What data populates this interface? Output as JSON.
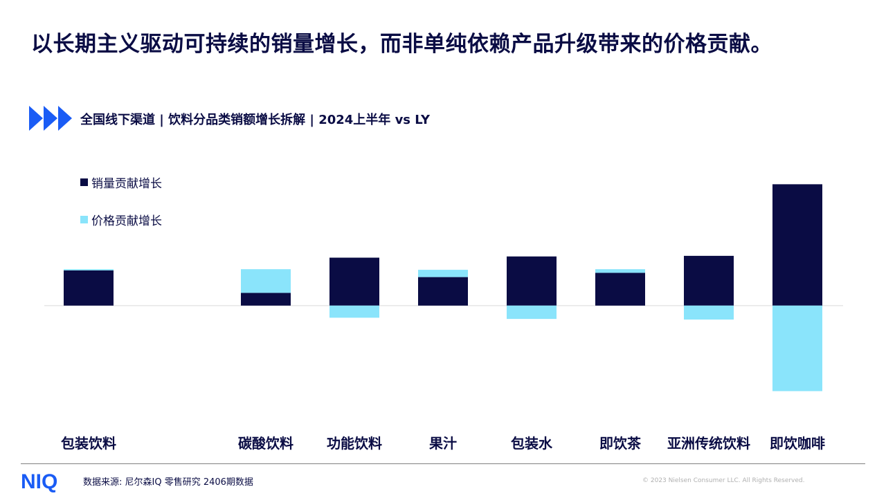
{
  "headline": "以长期主义驱动可持续的销量增长，而非单纯依赖产品升级带来的价格贡献。",
  "subtitle": "全国线下渠道 | 饮料分品类销额增长拆解 | 2024上半年 vs LY",
  "source": "数据来源: 尼尔森IQ 零售研究 2406期数据",
  "copyright": "© 2023 Nielsen Consumer LLC. All Rights Reserved.",
  "logo_text": "NIQ",
  "colors": {
    "volume": "#0a0c44",
    "price": "#8ae4fb",
    "brand_blue": "#1a5cf5"
  },
  "icons": {
    "subhead_marker": "triple-chevron-right-icon",
    "logo": "niq-logo"
  },
  "chart_data": {
    "type": "bar",
    "stacked": true,
    "title": "",
    "xlabel": "",
    "ylabel": "",
    "ylim": [
      -1.45,
      2.05
    ],
    "grid": false,
    "legend_placement": "top-left",
    "categories": [
      "包装饮料",
      "",
      "碳酸饮料",
      "功能饮料",
      "果汁",
      "包装水",
      "即饮茶",
      "亚洲传统饮料",
      "即饮咖啡"
    ],
    "series": [
      {
        "name": "销量贡献增长",
        "values": [
          0.58,
          null,
          0.21,
          0.79,
          0.47,
          0.81,
          0.54,
          0.82,
          2.0
        ]
      },
      {
        "name": "价格贡献增长",
        "values": [
          0.02,
          null,
          0.39,
          -0.2,
          0.12,
          -0.22,
          0.06,
          -0.23,
          -1.41
        ]
      }
    ]
  }
}
